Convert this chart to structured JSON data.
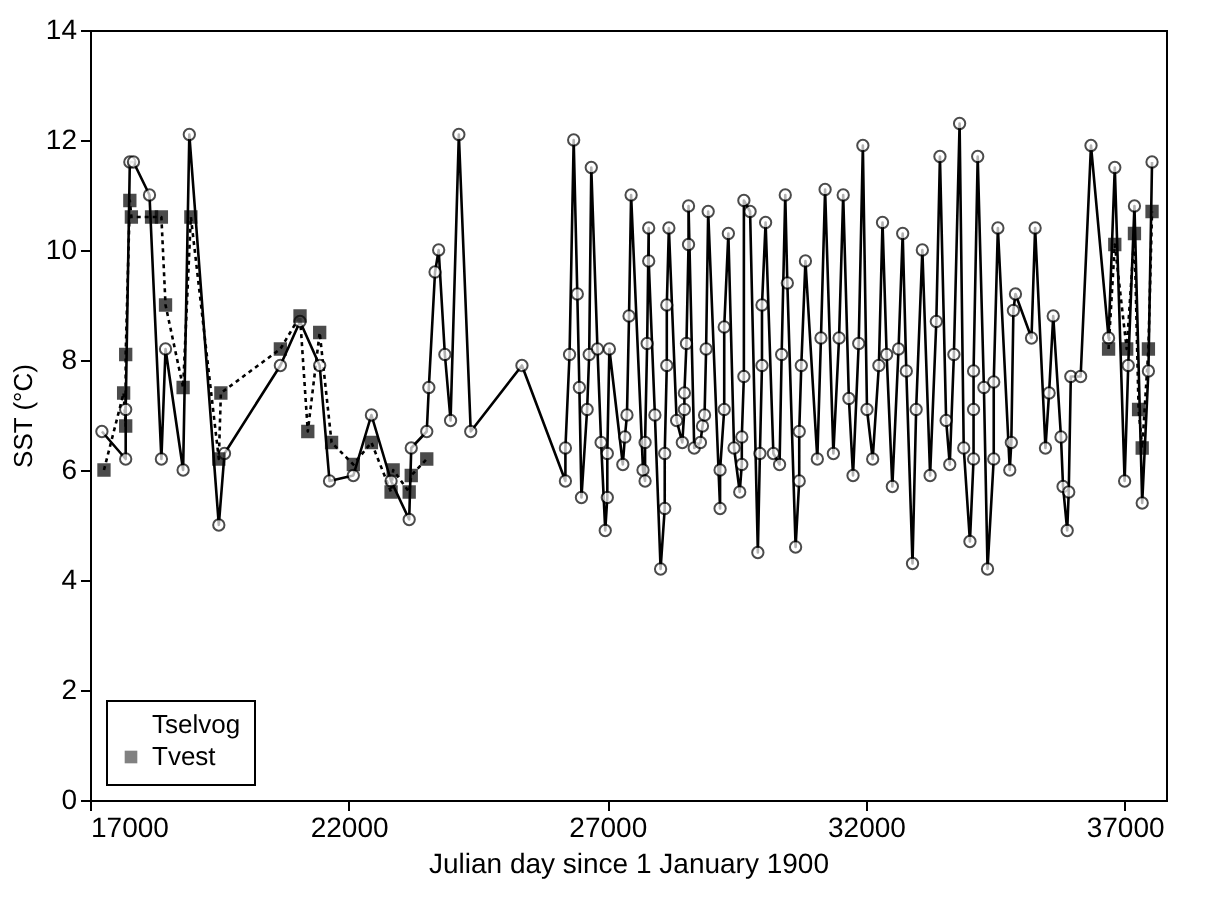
{
  "chart_data": {
    "type": "line",
    "xlabel": "Julian day since 1 January 1900",
    "ylabel": "SST (°C)",
    "xlim": [
      17000,
      37800
    ],
    "xticks": [
      17000,
      22000,
      27000,
      32000,
      37000
    ],
    "ylim": [
      0,
      14
    ],
    "yticks": [
      0,
      2,
      4,
      6,
      8,
      10,
      12,
      14
    ],
    "grid": false,
    "legend": "bottom left",
    "series": [
      {
        "name": "Tselvog",
        "color": "#000000",
        "marker": "circle",
        "line_style": "solid",
        "x": [
          17230,
          17690,
          17690,
          17770,
          17840,
          18150,
          18380,
          18460,
          18800,
          18920,
          19490,
          19600,
          20680,
          21060,
          21440,
          21630,
          22090,
          22440,
          22820,
          23170,
          23210,
          23510,
          23550,
          23670,
          23740,
          23860,
          23970,
          24130,
          24360,
          25350,
          26190,
          26190,
          26270,
          26350,
          26420,
          26460,
          26500,
          26610,
          26650,
          26690,
          26810,
          26880,
          26960,
          27000,
          27000,
          27040,
          27300,
          27340,
          27380,
          27420,
          27460,
          27690,
          27730,
          27730,
          27770,
          27800,
          27800,
          27920,
          28030,
          28110,
          28110,
          28150,
          28150,
          28190,
          28340,
          28450,
          28490,
          28490,
          28530,
          28570,
          28570,
          28680,
          28800,
          28840,
          28880,
          28910,
          28950,
          29180,
          29180,
          29260,
          29260,
          29340,
          29450,
          29560,
          29600,
          29600,
          29640,
          29640,
          29760,
          29910,
          29950,
          29990,
          29990,
          30060,
          30210,
          30330,
          30370,
          30440,
          30480,
          30640,
          30710,
          30710,
          30750,
          30830,
          31060,
          31130,
          31210,
          31370,
          31480,
          31560,
          31670,
          31750,
          31860,
          31940,
          32020,
          32130,
          32250,
          32320,
          32400,
          32510,
          32630,
          32710,
          32780,
          32900,
          32970,
          33090,
          33240,
          33360,
          33430,
          33550,
          33620,
          33700,
          33810,
          33890,
          34010,
          34080,
          34080,
          34080,
          34160,
          34280,
          34350,
          34470,
          34470,
          34550,
          34780,
          34810,
          34850,
          34890,
          35200,
          35270,
          35470,
          35540,
          35620,
          35770,
          35810,
          35890,
          35920,
          35960,
          36150,
          36350,
          36690,
          36810,
          37000,
          37070,
          37190,
          37340,
          37460,
          37530
        ],
        "values": [
          6.7,
          6.2,
          7.1,
          11.6,
          11.6,
          11.0,
          6.2,
          8.2,
          6.0,
          12.1,
          5.0,
          6.3,
          7.9,
          8.7,
          7.9,
          5.8,
          5.9,
          7.0,
          5.8,
          5.1,
          6.4,
          6.7,
          7.5,
          9.6,
          10.0,
          8.1,
          6.9,
          12.1,
          6.7,
          7.9,
          5.8,
          6.4,
          8.1,
          12.0,
          9.2,
          7.5,
          5.5,
          7.1,
          8.1,
          11.5,
          8.2,
          6.5,
          4.9,
          5.5,
          6.3,
          8.2,
          6.1,
          6.6,
          7.0,
          8.8,
          11.0,
          6.0,
          5.8,
          6.5,
          8.3,
          10.4,
          9.8,
          7.0,
          4.2,
          5.3,
          6.3,
          7.9,
          9.0,
          10.4,
          6.9,
          6.5,
          7.1,
          7.4,
          8.3,
          10.1,
          10.8,
          6.4,
          6.5,
          6.8,
          7.0,
          8.2,
          10.7,
          5.3,
          6.0,
          7.1,
          8.6,
          10.3,
          6.4,
          5.6,
          6.1,
          6.6,
          7.7,
          10.9,
          10.7,
          4.5,
          6.3,
          7.9,
          9.0,
          10.5,
          6.3,
          6.1,
          8.1,
          11.0,
          9.4,
          4.6,
          5.8,
          6.7,
          7.9,
          9.8,
          6.2,
          8.4,
          11.1,
          6.3,
          8.4,
          11.0,
          7.3,
          5.9,
          8.3,
          11.9,
          7.1,
          6.2,
          7.9,
          10.5,
          8.1,
          5.7,
          8.2,
          10.3,
          7.8,
          4.3,
          7.1,
          10.0,
          5.9,
          8.7,
          11.7,
          6.9,
          6.1,
          8.1,
          12.3,
          6.4,
          4.7,
          6.2,
          7.1,
          7.8,
          11.7,
          7.5,
          4.2,
          6.2,
          7.6,
          10.4,
          6.0,
          6.5,
          8.9,
          9.2,
          8.4,
          10.4,
          6.4,
          7.4,
          8.8,
          6.6,
          5.7,
          4.9,
          5.6,
          7.7,
          7.7,
          11.9,
          8.4,
          11.5,
          5.8,
          7.9,
          10.8,
          5.4,
          7.8,
          11.6
        ]
      },
      {
        "name": "Tvest",
        "color": "#000000",
        "marker": "square",
        "line_style": "dotted",
        "x": [
          17270,
          17650,
          17690,
          17690,
          17770,
          17800,
          18190,
          18380,
          18460,
          18800,
          18950,
          19490,
          19530,
          20680,
          21060,
          21210,
          21440,
          21670,
          22090,
          22440,
          22820,
          22860,
          23170,
          23210,
          23510,
          30000,
          36690,
          36810,
          37040,
          37190,
          37270,
          37340,
          37460,
          37530
        ],
        "values": [
          6.0,
          7.4,
          6.8,
          8.1,
          10.9,
          10.6,
          10.6,
          10.6,
          9.0,
          7.5,
          10.6,
          6.2,
          7.4,
          8.2,
          8.8,
          6.7,
          8.5,
          6.5,
          6.1,
          6.5,
          5.6,
          6.0,
          5.6,
          5.9,
          6.2,
          null,
          8.2,
          10.1,
          8.2,
          10.3,
          7.1,
          6.4,
          8.2,
          10.7
        ]
      }
    ]
  }
}
